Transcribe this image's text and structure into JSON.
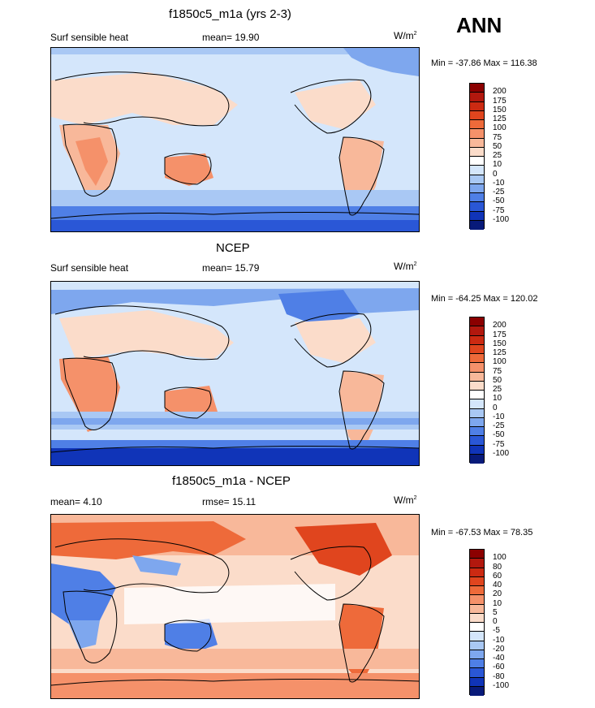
{
  "season": "ANN",
  "panels": [
    {
      "title": "f1850c5_m1a (yrs 2-3)",
      "left_label": "Surf sensible heat",
      "center_label": "mean=  19.90",
      "units": "W/m",
      "units_sup": "2",
      "minmax": "Min = -37.86 Max = 116.38",
      "levels": [
        "200",
        "175",
        "150",
        "125",
        "100",
        "75",
        "50",
        "25",
        "10",
        "0",
        "-10",
        "-25",
        "-50",
        "-75",
        "-100"
      ],
      "colors": [
        "#8b0000",
        "#b2180e",
        "#cc2a12",
        "#e0451e",
        "#ee6a3a",
        "#f5916a",
        "#f8b89a",
        "#fbdcca",
        "#ffffff",
        "#d4e6fb",
        "#a9c8f4",
        "#7ea7ee",
        "#4f7fe6",
        "#2a57d6",
        "#1034b8",
        "#081a7a"
      ]
    },
    {
      "title": "NCEP",
      "left_label": "Surf sensible heat",
      "center_label": "mean=  15.79",
      "units": "W/m",
      "units_sup": "2",
      "minmax": "Min = -64.25 Max = 120.02",
      "levels": [
        "200",
        "175",
        "150",
        "125",
        "100",
        "75",
        "50",
        "25",
        "10",
        "0",
        "-10",
        "-25",
        "-50",
        "-75",
        "-100"
      ],
      "colors": [
        "#8b0000",
        "#b2180e",
        "#cc2a12",
        "#e0451e",
        "#ee6a3a",
        "#f5916a",
        "#f8b89a",
        "#fbdcca",
        "#ffffff",
        "#d4e6fb",
        "#a9c8f4",
        "#7ea7ee",
        "#4f7fe6",
        "#2a57d6",
        "#1034b8",
        "#081a7a"
      ]
    },
    {
      "title": "f1850c5_m1a - NCEP",
      "left_label": "mean=   4.10",
      "center_label": "rmse=  15.11",
      "units": "W/m",
      "units_sup": "2",
      "minmax": "Min = -67.53 Max =  78.35",
      "levels": [
        "100",
        "80",
        "60",
        "40",
        "20",
        "10",
        "5",
        "0",
        "-5",
        "-10",
        "-20",
        "-40",
        "-60",
        "-80",
        "-100"
      ],
      "colors": [
        "#8b0000",
        "#b2180e",
        "#cc2a12",
        "#e0451e",
        "#ee6a3a",
        "#f5916a",
        "#f8b89a",
        "#fbdcca",
        "#ffffff",
        "#d4e6fb",
        "#a9c8f4",
        "#7ea7ee",
        "#4f7fe6",
        "#2a57d6",
        "#1034b8",
        "#081a7a"
      ]
    }
  ],
  "chart_data": [
    {
      "type": "heatmap",
      "title": "f1850c5_m1a (yrs 2-3)",
      "variable": "Surf sensible heat",
      "units": "W/m2",
      "mean": 19.9,
      "min": -37.86,
      "max": 116.38,
      "contour_levels": [
        -100,
        -75,
        -50,
        -25,
        -10,
        0,
        10,
        25,
        50,
        75,
        100,
        125,
        150,
        175,
        200
      ]
    },
    {
      "type": "heatmap",
      "title": "NCEP",
      "variable": "Surf sensible heat",
      "units": "W/m2",
      "mean": 15.79,
      "min": -64.25,
      "max": 120.02,
      "contour_levels": [
        -100,
        -75,
        -50,
        -25,
        -10,
        0,
        10,
        25,
        50,
        75,
        100,
        125,
        150,
        175,
        200
      ]
    },
    {
      "type": "heatmap",
      "title": "f1850c5_m1a - NCEP",
      "units": "W/m2",
      "mean": 4.1,
      "rmse": 15.11,
      "min": -67.53,
      "max": 78.35,
      "contour_levels": [
        -100,
        -80,
        -60,
        -40,
        -20,
        -10,
        -5,
        0,
        5,
        10,
        20,
        40,
        60,
        80,
        100
      ]
    }
  ]
}
